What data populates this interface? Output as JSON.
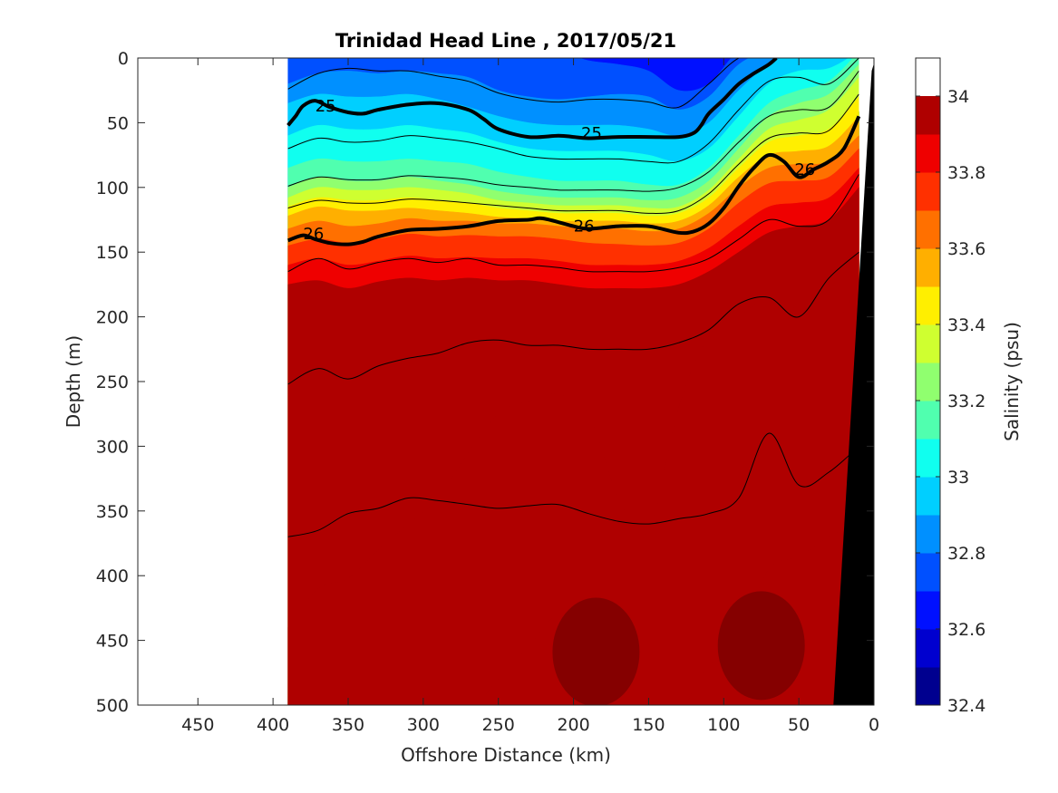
{
  "chart_data": {
    "type": "heatmap",
    "title": "Trinidad Head Line , 2017/05/21",
    "xlabel": "Offshore Distance (km)",
    "ylabel": "Depth (m)",
    "colorbar_label": "Salinity (psu)",
    "xlim": [
      490,
      0
    ],
    "ylim": [
      500,
      0
    ],
    "x_direction": "reversed",
    "y_direction": "reversed",
    "x_ticks": [
      450,
      400,
      350,
      300,
      250,
      200,
      150,
      100,
      50,
      0
    ],
    "y_ticks": [
      0,
      50,
      100,
      150,
      200,
      250,
      300,
      350,
      400,
      450,
      500
    ],
    "colorbar_range": [
      32.4,
      34.1
    ],
    "colorbar_ticks": [
      32.4,
      32.6,
      32.8,
      33,
      33.2,
      33.4,
      33.6,
      33.8,
      34
    ],
    "colorbar_levels": [
      32.4,
      32.5,
      32.6,
      32.7,
      32.8,
      32.9,
      33.0,
      33.1,
      33.2,
      33.3,
      33.4,
      33.5,
      33.6,
      33.7,
      33.8,
      33.9,
      34.0,
      34.1
    ],
    "colors": [
      "#00008f",
      "#0000cf",
      "#0010ff",
      "#0050ff",
      "#0090ff",
      "#00cfff",
      "#10ffef",
      "#50ffaf",
      "#90ff6f",
      "#cfff30",
      "#ffef00",
      "#ffaf00",
      "#ff7000",
      "#ff3000",
      "#ef0000",
      "#af0000"
    ],
    "data_range_km": [
      390,
      10
    ],
    "section": {
      "x": [
        390,
        370,
        350,
        330,
        310,
        290,
        270,
        250,
        230,
        210,
        190,
        170,
        150,
        130,
        110,
        90,
        70,
        50,
        30,
        10
      ],
      "boundaries_depth_m": [
        {
          "level": 32.7,
          "y": [
            -5,
            -5,
            -5,
            -5,
            -5,
            -5,
            -5,
            -5,
            -5,
            -5,
            2,
            5,
            10,
            25,
            20,
            -5,
            -5,
            -5,
            -5,
            -5
          ]
        },
        {
          "level": 32.8,
          "y": [
            20,
            12,
            10,
            12,
            10,
            12,
            15,
            25,
            30,
            32,
            30,
            28,
            30,
            40,
            30,
            5,
            -5,
            -5,
            -5,
            -5
          ]
        },
        {
          "level": 32.9,
          "y": [
            35,
            28,
            30,
            30,
            28,
            32,
            38,
            45,
            50,
            52,
            52,
            52,
            55,
            60,
            50,
            25,
            5,
            -5,
            -5,
            -5
          ]
        },
        {
          "level": 33.0,
          "y": [
            60,
            52,
            55,
            55,
            52,
            55,
            58,
            65,
            70,
            72,
            72,
            72,
            75,
            80,
            70,
            45,
            20,
            10,
            8,
            -5
          ]
        },
        {
          "level": 33.1,
          "y": [
            85,
            78,
            80,
            80,
            78,
            80,
            82,
            88,
            92,
            95,
            95,
            95,
            98,
            98,
            85,
            60,
            35,
            25,
            18,
            -5
          ]
        },
        {
          "level": 33.2,
          "y": [
            100,
            92,
            95,
            95,
            92,
            95,
            98,
            103,
            106,
            108,
            108,
            108,
            110,
            108,
            95,
            70,
            45,
            35,
            28,
            5
          ]
        },
        {
          "level": 33.3,
          "y": [
            108,
            100,
            102,
            102,
            100,
            102,
            105,
            110,
            112,
            114,
            114,
            114,
            116,
            115,
            102,
            78,
            55,
            48,
            40,
            15
          ]
        },
        {
          "level": 33.4,
          "y": [
            115,
            108,
            110,
            110,
            108,
            110,
            112,
            116,
            118,
            120,
            120,
            120,
            122,
            120,
            108,
            85,
            65,
            60,
            55,
            30
          ]
        },
        {
          "level": 33.5,
          "y": [
            122,
            115,
            118,
            118,
            116,
            118,
            120,
            123,
            124,
            126,
            126,
            126,
            128,
            126,
            114,
            92,
            75,
            72,
            68,
            45
          ]
        },
        {
          "level": 33.6,
          "y": [
            132,
            126,
            130,
            128,
            124,
            126,
            126,
            128,
            128,
            130,
            132,
            132,
            134,
            132,
            120,
            100,
            85,
            82,
            80,
            60
          ]
        },
        {
          "level": 33.7,
          "y": [
            145,
            140,
            143,
            140,
            136,
            138,
            137,
            138,
            138,
            140,
            143,
            144,
            145,
            143,
            132,
            112,
            97,
            95,
            92,
            70
          ]
        },
        {
          "level": 33.8,
          "y": [
            160,
            155,
            160,
            157,
            153,
            155,
            154,
            155,
            155,
            157,
            160,
            160,
            160,
            157,
            147,
            130,
            115,
            112,
            108,
            85
          ]
        },
        {
          "level": 33.9,
          "y": [
            175,
            172,
            178,
            173,
            170,
            172,
            170,
            172,
            172,
            175,
            178,
            178,
            178,
            175,
            165,
            150,
            135,
            130,
            125,
            100
          ]
        },
        {
          "level": 34.0,
          "y": [
            440,
            410,
            402,
            380,
            360,
            340,
            305,
            275,
            265,
            260,
            275,
            340,
            365,
            270,
            215,
            200,
            185,
            195,
            210,
            175
          ]
        },
        {
          "level": 34.1,
          "y": [
            505,
            505,
            505,
            505,
            505,
            505,
            505,
            480,
            455,
            430,
            440,
            480,
            505,
            505,
            470,
            445,
            395,
            385,
            370,
            360
          ]
        }
      ],
      "deep_patches_depth_m": [
        {
          "center_x": 185,
          "center_y": 445,
          "note": "darkest core"
        },
        {
          "center_x": 75,
          "center_y": 440,
          "note": "darkest core"
        }
      ]
    },
    "density_contours": {
      "labeled": [
        {
          "label": "25",
          "x": [
            390,
            385,
            380,
            372,
            362,
            350,
            340,
            330,
            310,
            290,
            270,
            260,
            250,
            230,
            210,
            200,
            190,
            170,
            150,
            130,
            120,
            115,
            110,
            100,
            90,
            80,
            70,
            65
          ],
          "y": [
            52,
            45,
            37,
            33,
            38,
            42,
            43,
            40,
            36,
            35,
            40,
            47,
            55,
            61,
            60,
            61,
            62,
            61,
            61,
            61,
            58,
            52,
            43,
            32,
            20,
            12,
            5,
            0
          ]
        },
        {
          "label": "26",
          "x": [
            390,
            380,
            372,
            362,
            350,
            340,
            330,
            310,
            290,
            270,
            250,
            230,
            220,
            200,
            190,
            170,
            150,
            130,
            120,
            110,
            100,
            90,
            80,
            70,
            60,
            50,
            40,
            30,
            20,
            10
          ],
          "y": [
            141,
            137,
            140,
            143,
            144,
            142,
            138,
            133,
            132,
            130,
            126,
            125,
            124,
            130,
            132,
            130,
            130,
            135,
            134,
            128,
            116,
            99,
            85,
            75,
            80,
            92,
            86,
            80,
            70,
            45
          ]
        }
      ],
      "labels_text": [
        {
          "text": "25",
          "x": 365,
          "y": 37
        },
        {
          "text": "25",
          "x": 188,
          "y": 58
        },
        {
          "text": "26",
          "x": 373,
          "y": 136
        },
        {
          "text": "26",
          "x": 193,
          "y": 130
        },
        {
          "text": "26",
          "x": 46,
          "y": 86
        }
      ],
      "thin": [
        {
          "x": [
            390,
            370,
            350,
            330,
            310,
            290,
            270,
            250,
            230,
            210,
            190,
            170,
            150,
            130,
            110,
            90,
            70,
            50,
            30,
            10
          ],
          "y": [
            24,
            12,
            8,
            10,
            10,
            14,
            18,
            27,
            32,
            34,
            32,
            32,
            34,
            38,
            20,
            0,
            -5,
            -5,
            -5,
            -5
          ]
        },
        {
          "x": [
            390,
            370,
            350,
            330,
            310,
            290,
            270,
            250,
            230,
            210,
            190,
            170,
            150,
            130,
            110,
            90,
            70,
            50,
            30,
            10
          ],
          "y": [
            70,
            62,
            65,
            64,
            60,
            62,
            65,
            70,
            76,
            78,
            78,
            78,
            80,
            80,
            66,
            40,
            18,
            15,
            20,
            0
          ]
        },
        {
          "x": [
            390,
            370,
            350,
            330,
            310,
            290,
            270,
            250,
            230,
            210,
            190,
            170,
            150,
            130,
            110,
            90,
            70,
            50,
            30,
            10
          ],
          "y": [
            99,
            92,
            94,
            94,
            91,
            92,
            94,
            98,
            100,
            102,
            102,
            102,
            103,
            100,
            88,
            65,
            45,
            40,
            38,
            10
          ]
        },
        {
          "x": [
            390,
            370,
            350,
            330,
            310,
            290,
            270,
            250,
            230,
            210,
            190,
            170,
            150,
            130,
            110,
            90,
            70,
            50,
            30,
            10
          ],
          "y": [
            116,
            110,
            112,
            112,
            109,
            110,
            112,
            114,
            116,
            118,
            118,
            118,
            120,
            118,
            105,
            82,
            62,
            58,
            56,
            28
          ]
        },
        {
          "x": [
            390,
            370,
            350,
            330,
            310,
            290,
            270,
            250,
            230,
            210,
            190,
            170,
            150,
            130,
            110,
            90,
            70,
            50,
            30,
            10
          ],
          "y": [
            165,
            155,
            163,
            158,
            155,
            158,
            155,
            160,
            160,
            162,
            165,
            165,
            165,
            162,
            155,
            140,
            125,
            130,
            125,
            90
          ]
        },
        {
          "x": [
            390,
            370,
            350,
            330,
            310,
            290,
            270,
            250,
            230,
            210,
            190,
            170,
            150,
            130,
            110,
            90,
            70,
            50,
            30,
            10
          ],
          "y": [
            252,
            240,
            248,
            238,
            232,
            228,
            220,
            218,
            222,
            222,
            225,
            225,
            225,
            220,
            210,
            190,
            185,
            200,
            170,
            150
          ]
        },
        {
          "x": [
            390,
            370,
            350,
            330,
            310,
            290,
            270,
            250,
            230,
            210,
            190,
            170,
            150,
            130,
            110,
            90,
            70,
            50,
            30,
            10
          ],
          "y": [
            370,
            365,
            352,
            348,
            340,
            342,
            345,
            348,
            346,
            345,
            352,
            358,
            360,
            356,
            352,
            340,
            290,
            330,
            320,
            300
          ]
        }
      ]
    },
    "bathymetry": {
      "fill": "#000000",
      "x_km": [
        27,
        0
      ],
      "depth_top_m": 0,
      "description": "continental slope wedge on right edge"
    }
  }
}
